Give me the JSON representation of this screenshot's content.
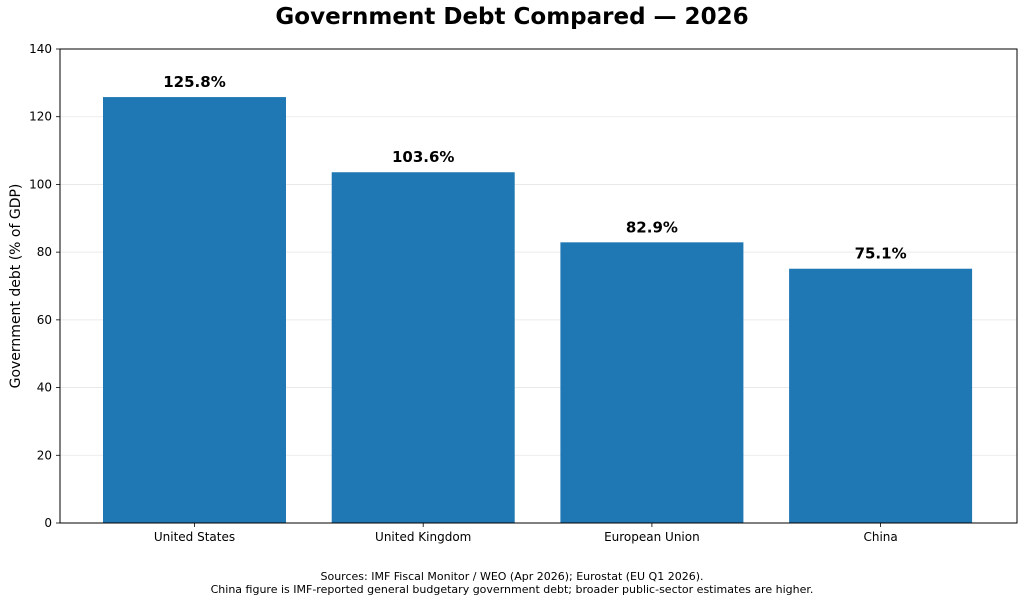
{
  "chart_data": {
    "type": "bar",
    "title": "Government Debt Compared — 2026",
    "xlabel": "",
    "ylabel": "Government debt (% of GDP)",
    "categories": [
      "United States",
      "United Kingdom",
      "European Union",
      "China"
    ],
    "values": [
      125.8,
      103.6,
      82.9,
      75.1
    ],
    "value_labels": [
      "125.8%",
      "103.6%",
      "82.9%",
      "75.1%"
    ],
    "ylim": [
      0,
      140
    ],
    "yticks": [
      0,
      20,
      40,
      60,
      80,
      100,
      120,
      140
    ],
    "grid": "horizontal",
    "bar_color": "#1f77b4",
    "footnote_lines": [
      "Sources: IMF Fiscal Monitor / WEO (Apr 2026); Eurostat (EU Q1 2026).",
      "China figure is IMF-reported general budgetary government debt; broader public-sector estimates are higher."
    ]
  }
}
